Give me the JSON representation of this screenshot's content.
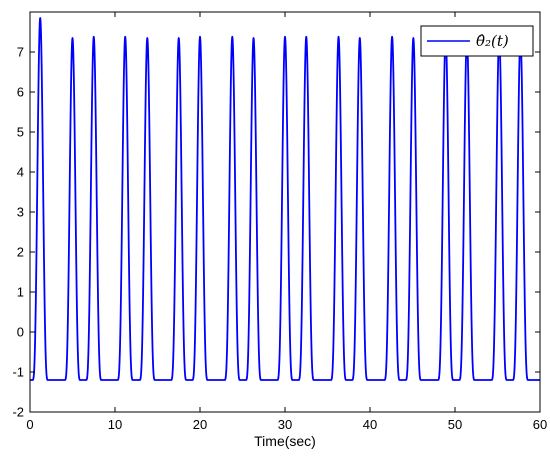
{
  "chart_data": {
    "type": "line",
    "title": "",
    "xlabel": "Time(sec)",
    "ylabel": "",
    "xlim": [
      0,
      60
    ],
    "ylim": [
      -2,
      8
    ],
    "xticks": [
      0,
      10,
      20,
      30,
      40,
      50,
      60
    ],
    "yticks": [
      -2,
      -1,
      0,
      1,
      2,
      3,
      4,
      5,
      6,
      7
    ],
    "grid": false,
    "legend_position": "top-right",
    "colors": {
      "series": "#0000ff",
      "axes": "#000000",
      "background": "#ffffff"
    },
    "series": [
      {
        "name": "θ̂₂(t)",
        "baseline": -1.2,
        "pulse_width_sec": 0.9,
        "peaks": [
          {
            "t": 1.2,
            "value": 7.85
          },
          {
            "t": 5.0,
            "value": 7.35
          },
          {
            "t": 7.5,
            "value": 7.38
          },
          {
            "t": 11.2,
            "value": 7.38
          },
          {
            "t": 13.8,
            "value": 7.35
          },
          {
            "t": 17.5,
            "value": 7.35
          },
          {
            "t": 20.0,
            "value": 7.38
          },
          {
            "t": 23.8,
            "value": 7.38
          },
          {
            "t": 26.3,
            "value": 7.35
          },
          {
            "t": 30.0,
            "value": 7.38
          },
          {
            "t": 32.5,
            "value": 7.38
          },
          {
            "t": 36.3,
            "value": 7.38
          },
          {
            "t": 38.8,
            "value": 7.35
          },
          {
            "t": 42.6,
            "value": 7.38
          },
          {
            "t": 45.1,
            "value": 7.35
          },
          {
            "t": 48.9,
            "value": 7.38
          },
          {
            "t": 51.4,
            "value": 7.35
          },
          {
            "t": 55.2,
            "value": 7.38
          },
          {
            "t": 57.7,
            "value": 7.35
          }
        ]
      }
    ]
  }
}
